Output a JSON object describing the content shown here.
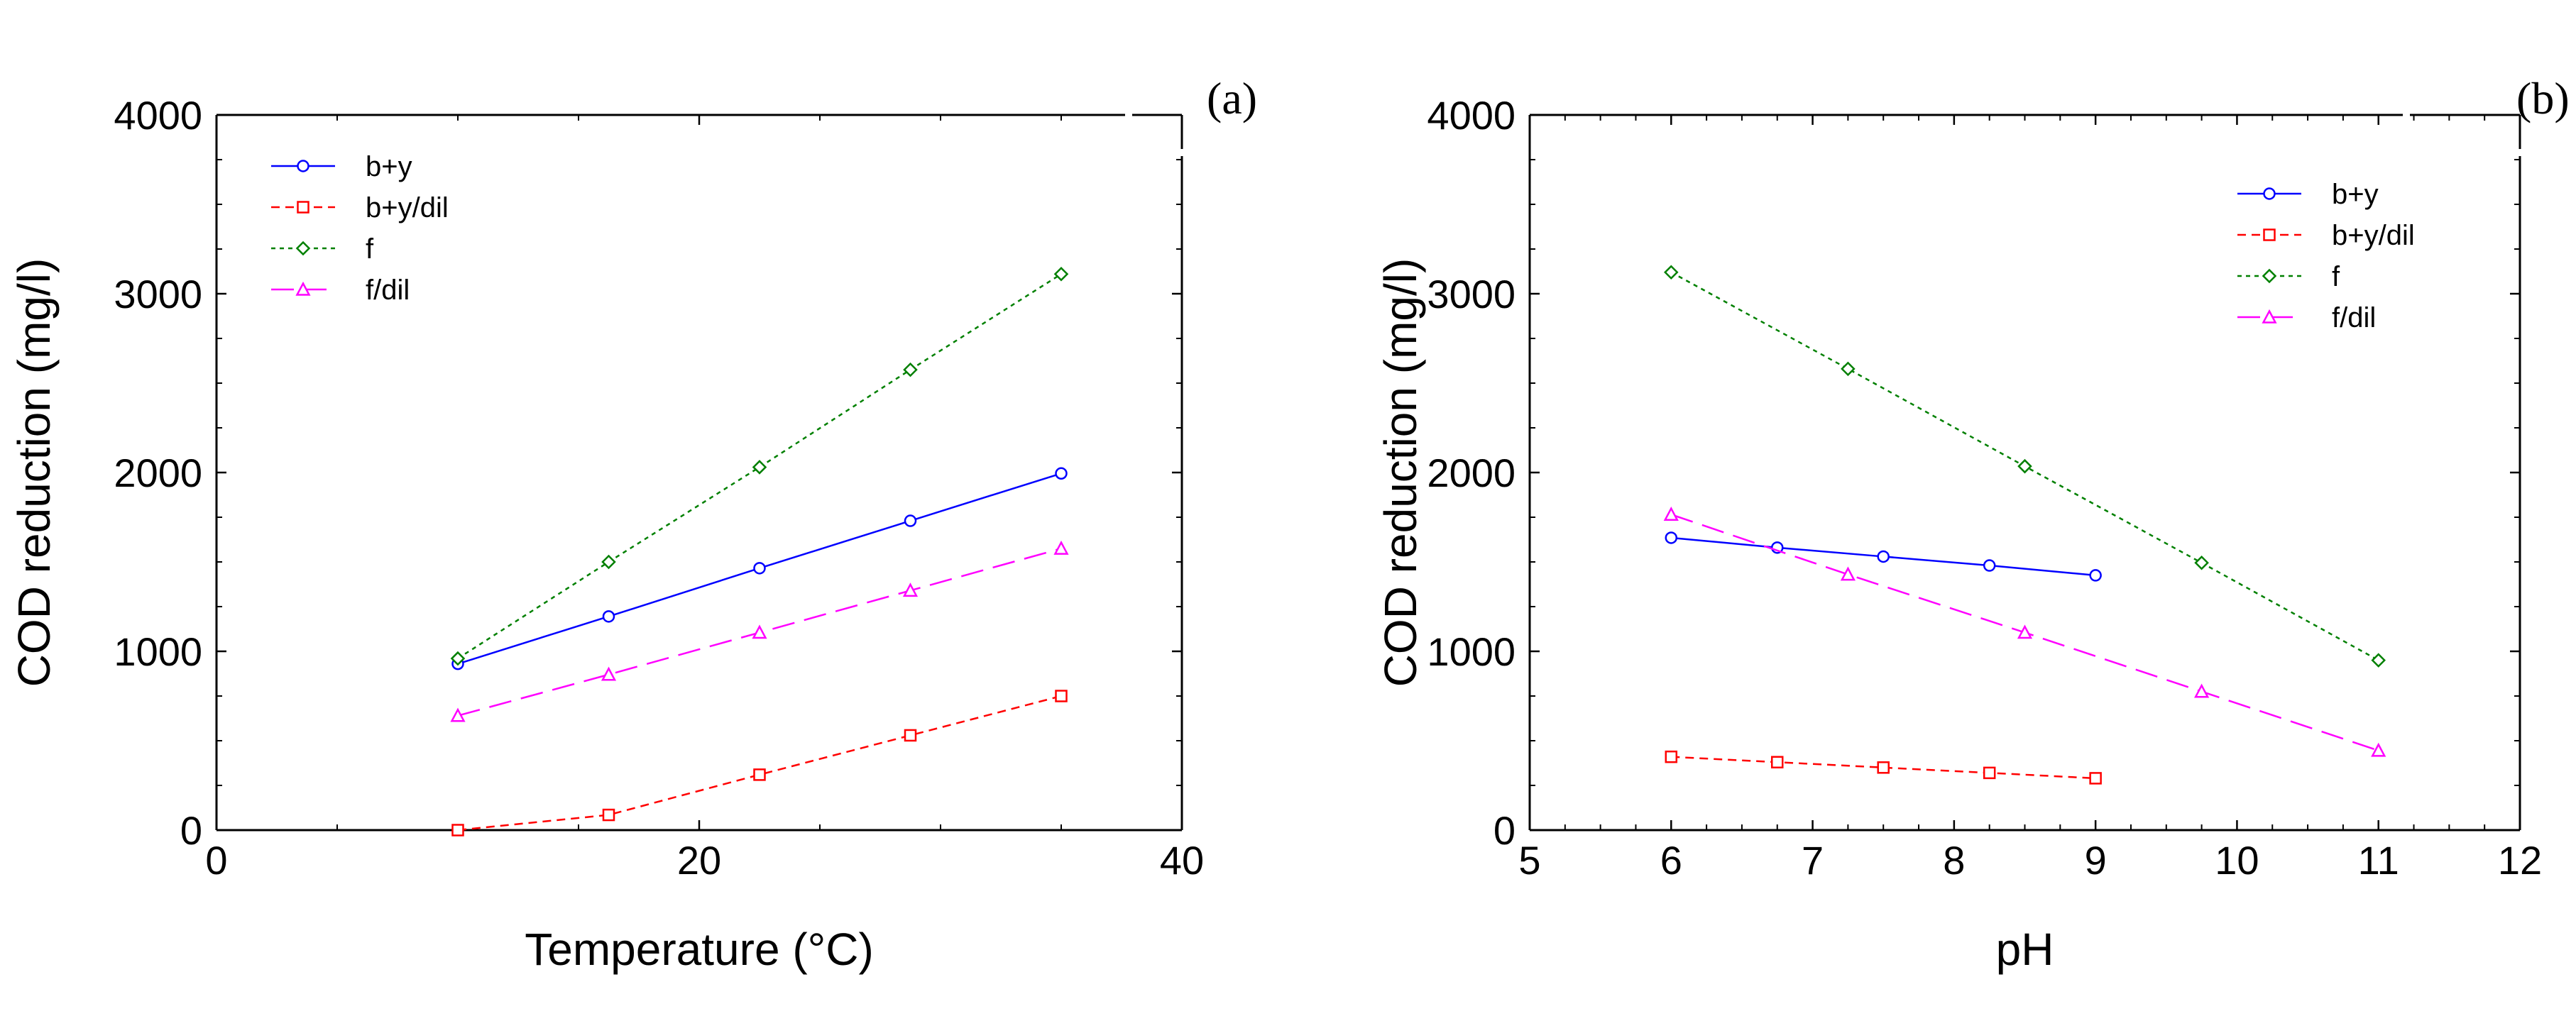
{
  "chart_data": [
    {
      "type": "line",
      "panel_label": "(a)",
      "xlabel": "Temperature (°C)",
      "ylabel": "COD reduction (mg/l)",
      "xlim": [
        0,
        40
      ],
      "ylim": [
        0,
        4000
      ],
      "xticks": [
        0,
        20,
        40
      ],
      "yticks": [
        0,
        1000,
        2000,
        3000,
        4000
      ],
      "grid": false,
      "legend_position": "top-left",
      "series": [
        {
          "name": "b+y",
          "color": "#0000ff",
          "marker": "circle",
          "dash": "solid",
          "x": [
            10,
            16.25,
            22.5,
            28.75,
            35
          ],
          "y": [
            930,
            1195,
            1465,
            1730,
            1995
          ]
        },
        {
          "name": "b+y/dil",
          "color": "#ff0000",
          "marker": "square",
          "dash": "dashed",
          "x": [
            10,
            16.25,
            22.5,
            28.75,
            35
          ],
          "y": [
            0,
            85,
            310,
            530,
            750
          ]
        },
        {
          "name": "f",
          "color": "#008000",
          "marker": "diamond",
          "dash": "dotted",
          "x": [
            10,
            16.25,
            22.5,
            28.75,
            35
          ],
          "y": [
            960,
            1500,
            2030,
            2575,
            3110
          ]
        },
        {
          "name": "f/dil",
          "color": "#ff00ff",
          "marker": "triangle",
          "dash": "longdash",
          "x": [
            10,
            16.25,
            22.5,
            28.75,
            35
          ],
          "y": [
            640,
            870,
            1105,
            1340,
            1575
          ]
        }
      ]
    },
    {
      "type": "line",
      "panel_label": "(b)",
      "xlabel": "pH",
      "ylabel": "COD reduction (mg/l)",
      "xlim": [
        5,
        12
      ],
      "ylim": [
        0,
        4000
      ],
      "xticks": [
        5,
        6,
        7,
        8,
        9,
        10,
        11,
        12
      ],
      "yticks": [
        0,
        1000,
        2000,
        3000,
        4000
      ],
      "grid": false,
      "legend_position": "top-right",
      "series": [
        {
          "name": "b+y",
          "color": "#0000ff",
          "marker": "circle",
          "dash": "solid",
          "x": [
            6,
            6.75,
            7.5,
            8.25,
            9
          ],
          "y": [
            1635,
            1580,
            1530,
            1480,
            1425
          ]
        },
        {
          "name": "b+y/dil",
          "color": "#ff0000",
          "marker": "square",
          "dash": "dashed",
          "x": [
            6,
            6.75,
            7.5,
            8.25,
            9
          ],
          "y": [
            410,
            380,
            350,
            320,
            290
          ]
        },
        {
          "name": "f",
          "color": "#008000",
          "marker": "diamond",
          "dash": "dotted",
          "x": [
            6,
            7.25,
            8.5,
            9.75,
            11
          ],
          "y": [
            3120,
            2580,
            2035,
            1495,
            950
          ]
        },
        {
          "name": "f/dil",
          "color": "#ff00ff",
          "marker": "triangle",
          "dash": "longdash",
          "x": [
            6,
            7.25,
            8.5,
            9.75,
            11
          ],
          "y": [
            1765,
            1430,
            1105,
            775,
            445
          ]
        }
      ]
    }
  ]
}
